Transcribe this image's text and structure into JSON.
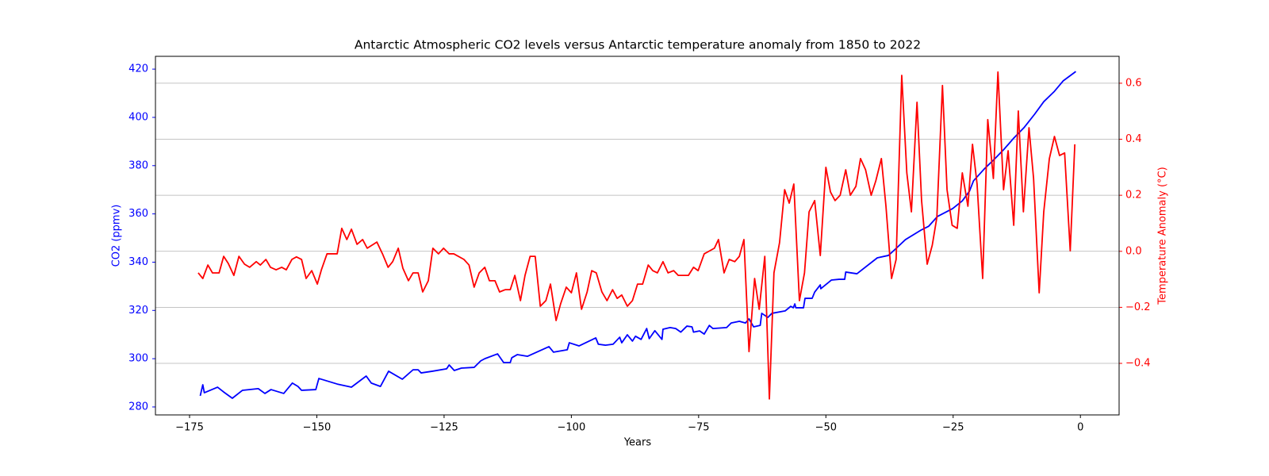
{
  "chart_data": {
    "type": "line",
    "title": "Antarctic Atmospheric CO2 levels versus Antarctic temperature anomaly from 1850 to 2022",
    "x_label": "Years",
    "y_label": "CO2 (ppmv)",
    "y2_label": "Temperature Anomaly (°C)",
    "grid": "y2",
    "xlim": [
      -181.7,
      7.6
    ],
    "xticks": [
      {
        "value": -175,
        "label": "−175"
      },
      {
        "value": -150,
        "label": "−150"
      },
      {
        "value": -125,
        "label": "−125"
      },
      {
        "value": -100,
        "label": "−100"
      },
      {
        "value": -75,
        "label": "−75"
      },
      {
        "value": -50,
        "label": "−50"
      },
      {
        "value": -25,
        "label": "−25"
      },
      0
    ],
    "ylim": [
      276.7,
      425.3
    ],
    "yticks": [
      280,
      300,
      320,
      340,
      360,
      380,
      400,
      420
    ],
    "y2lim": [
      -0.584,
      0.696
    ],
    "y2ticks": [
      {
        "value": -0.4,
        "label": "−0.4"
      },
      {
        "value": -0.2,
        "label": "−0.2"
      },
      {
        "value": 0,
        "label": "0.0"
      },
      0.2,
      0.4,
      0.6
    ],
    "series": [
      {
        "color": "#0000ff",
        "axis": "y",
        "x": [
          -172.9,
          -172.4,
          -172.1,
          -169.5,
          -168.3,
          -166.6,
          -164.6,
          -161.5,
          -160.2,
          -159.0,
          -156.5,
          -154.8,
          -153.7,
          -153.0,
          -150.2,
          -149.6,
          -146.0,
          -143.2,
          -140.3,
          -139.3,
          -137.5,
          -135.9,
          -133.2,
          -131.1,
          -130.1,
          -129.5,
          -127.3,
          -124.5,
          -124.0,
          -123.0,
          -121.6,
          -119.1,
          -117.8,
          -117.0,
          -114.5,
          -113.3,
          -112.0,
          -111.7,
          -110.6,
          -108.6,
          -104.4,
          -103.5,
          -100.8,
          -100.4,
          -98.5,
          -95.2,
          -94.7,
          -93.3,
          -91.8,
          -90.5,
          -90.1,
          -89.0,
          -88.0,
          -87.4,
          -86.3,
          -85.2,
          -84.7,
          -83.6,
          -82.2,
          -82.0,
          -80.6,
          -79.5,
          -78.5,
          -77.3,
          -76.3,
          -76.0,
          -74.8,
          -73.9,
          -72.9,
          -72.2,
          -69.5,
          -68.6,
          -67.0,
          -65.8,
          -65.1,
          -64.2,
          -62.9,
          -62.6,
          -61.4,
          -60.6,
          -58.0,
          -56.9,
          -56.4,
          -56.1,
          -55.9,
          -54.4,
          -54.1,
          -52.7,
          -52.2,
          -51.1,
          -51.0,
          -48.9,
          -47.4,
          -46.3,
          -46.1,
          -43.9,
          -39.9,
          -37.7,
          -36.2,
          -34.4,
          -31.3,
          -29.8,
          -28.1,
          -25.1,
          -23.2,
          -21.8,
          -21.0,
          -18.9,
          -16.8,
          -15.0,
          -13.1,
          -11.1,
          -9.0,
          -7.2,
          -5.1,
          -3.4,
          -0.9
        ],
        "values": [
          284.6,
          289.2,
          285.9,
          288.2,
          286.2,
          283.6,
          286.9,
          287.6,
          285.6,
          287.2,
          285.6,
          289.9,
          288.5,
          286.9,
          287.2,
          291.8,
          289.5,
          288.2,
          292.8,
          289.9,
          288.5,
          294.8,
          291.5,
          295.4,
          295.4,
          294.1,
          294.8,
          295.8,
          297.4,
          295.1,
          296.1,
          296.4,
          299.1,
          300.0,
          302.0,
          298.4,
          298.4,
          300.4,
          301.7,
          301.0,
          305.0,
          302.7,
          303.7,
          306.6,
          305.3,
          308.6,
          306.0,
          305.6,
          306.0,
          308.9,
          306.6,
          309.9,
          307.3,
          309.3,
          308.0,
          312.5,
          308.3,
          311.6,
          308.0,
          312.2,
          312.9,
          312.5,
          311.0,
          313.5,
          313.2,
          311.0,
          311.5,
          310.2,
          313.8,
          312.5,
          312.9,
          314.8,
          315.5,
          314.8,
          316.5,
          313.2,
          313.8,
          318.8,
          317.1,
          318.8,
          319.8,
          321.7,
          321.1,
          322.7,
          321.1,
          321.1,
          325.0,
          325.0,
          327.6,
          330.6,
          329.0,
          332.6,
          332.9,
          332.9,
          335.9,
          335.2,
          341.8,
          342.8,
          345.7,
          349.3,
          353.3,
          354.9,
          358.9,
          362.2,
          365.4,
          369.4,
          373.7,
          378.6,
          382.9,
          386.8,
          391.4,
          395.7,
          401.3,
          406.5,
          410.8,
          415.1,
          419.0
        ]
      },
      {
        "color": "#ff0000",
        "axis": "y2",
        "x": [
          -173.3,
          -172.4,
          -171.4,
          -170.5,
          -169.2,
          -168.3,
          -167.4,
          -166.3,
          -165.3,
          -164.2,
          -163.2,
          -161.9,
          -161.1,
          -160.0,
          -159.1,
          -158.0,
          -156.9,
          -156.0,
          -154.9,
          -154.0,
          -153.0,
          -152.1,
          -151.0,
          -149.9,
          -149.1,
          -148.0,
          -146.0,
          -145.1,
          -144.1,
          -143.2,
          -142.1,
          -141.0,
          -140.1,
          -138.2,
          -137.1,
          -136.0,
          -135.1,
          -134.0,
          -133.1,
          -132.0,
          -131.1,
          -130.1,
          -129.2,
          -128.1,
          -127.2,
          -126.1,
          -125.1,
          -124.0,
          -123.1,
          -121.1,
          -120.1,
          -119.1,
          -118.1,
          -117.0,
          -116.1,
          -115.0,
          -114.1,
          -113.0,
          -112.0,
          -111.1,
          -110.0,
          -109.1,
          -108.1,
          -107.1,
          -106.1,
          -105.0,
          -104.1,
          -103.0,
          -102.1,
          -101.0,
          -100.0,
          -99.0,
          -98.0,
          -96.9,
          -96.0,
          -95.1,
          -94.0,
          -93.0,
          -91.9,
          -91.0,
          -90.1,
          -89.0,
          -88.0,
          -87.0,
          -86.0,
          -84.9,
          -84.0,
          -83.1,
          -82.0,
          -81.0,
          -79.9,
          -79.0,
          -77.0,
          -76.0,
          -75.1,
          -73.9,
          -71.9,
          -71.1,
          -70.0,
          -69.0,
          -67.9,
          -67.0,
          -66.1,
          -65.1,
          -64.0,
          -63.1,
          -62.0,
          -61.1,
          -60.2,
          -59.1,
          -58.1,
          -57.2,
          -56.3,
          -55.2,
          -54.2,
          -53.3,
          -52.2,
          -51.1,
          -50.0,
          -49.1,
          -48.2,
          -47.2,
          -46.1,
          -45.2,
          -44.1,
          -43.2,
          -42.2,
          -41.1,
          -40.2,
          -39.1,
          -38.2,
          -37.1,
          -36.2,
          -35.1,
          -34.1,
          -33.2,
          -32.1,
          -31.2,
          -30.1,
          -29.1,
          -28.2,
          -27.1,
          -26.2,
          -25.2,
          -24.2,
          -23.2,
          -22.1,
          -21.2,
          -20.3,
          -19.2,
          -18.2,
          -17.1,
          -16.2,
          -15.1,
          -14.2,
          -13.1,
          -12.2,
          -11.2,
          -10.1,
          -9.2,
          -8.1,
          -7.2,
          -6.1,
          -5.1,
          -4.1,
          -3.1,
          -2.0,
          -1.1
        ],
        "values": [
          -0.077,
          -0.097,
          -0.049,
          -0.077,
          -0.077,
          -0.018,
          -0.043,
          -0.086,
          -0.018,
          -0.046,
          -0.057,
          -0.037,
          -0.049,
          -0.029,
          -0.057,
          -0.066,
          -0.057,
          -0.066,
          -0.029,
          -0.02,
          -0.029,
          -0.097,
          -0.069,
          -0.117,
          -0.066,
          -0.009,
          -0.009,
          0.082,
          0.042,
          0.079,
          0.025,
          0.042,
          0.011,
          0.033,
          -0.009,
          -0.057,
          -0.037,
          0.011,
          -0.06,
          -0.105,
          -0.077,
          -0.077,
          -0.145,
          -0.105,
          0.011,
          -0.009,
          0.011,
          -0.009,
          -0.009,
          -0.029,
          -0.049,
          -0.128,
          -0.077,
          -0.057,
          -0.105,
          -0.105,
          -0.145,
          -0.137,
          -0.137,
          -0.086,
          -0.176,
          -0.086,
          -0.018,
          -0.018,
          -0.196,
          -0.176,
          -0.117,
          -0.247,
          -0.187,
          -0.128,
          -0.148,
          -0.077,
          -0.207,
          -0.145,
          -0.069,
          -0.077,
          -0.145,
          -0.176,
          -0.137,
          -0.168,
          -0.156,
          -0.196,
          -0.176,
          -0.117,
          -0.117,
          -0.049,
          -0.069,
          -0.077,
          -0.037,
          -0.077,
          -0.069,
          -0.086,
          -0.086,
          -0.057,
          -0.069,
          -0.009,
          0.011,
          0.042,
          -0.077,
          -0.029,
          -0.037,
          -0.018,
          0.042,
          -0.358,
          -0.097,
          -0.207,
          -0.018,
          -0.527,
          -0.077,
          0.031,
          0.22,
          0.172,
          0.24,
          -0.176,
          -0.077,
          0.141,
          0.181,
          -0.015,
          0.3,
          0.212,
          0.181,
          0.2,
          0.291,
          0.2,
          0.232,
          0.331,
          0.291,
          0.2,
          0.251,
          0.331,
          0.161,
          -0.097,
          -0.029,
          0.628,
          0.28,
          0.141,
          0.532,
          0.181,
          -0.046,
          0.022,
          0.121,
          0.592,
          0.22,
          0.093,
          0.082,
          0.28,
          0.161,
          0.382,
          0.24,
          -0.097,
          0.47,
          0.26,
          0.64,
          0.22,
          0.359,
          0.093,
          0.501,
          0.141,
          0.441,
          0.26,
          -0.148,
          0.141,
          0.331,
          0.41,
          0.342,
          0.351,
          0.002,
          0.382
        ]
      }
    ]
  }
}
